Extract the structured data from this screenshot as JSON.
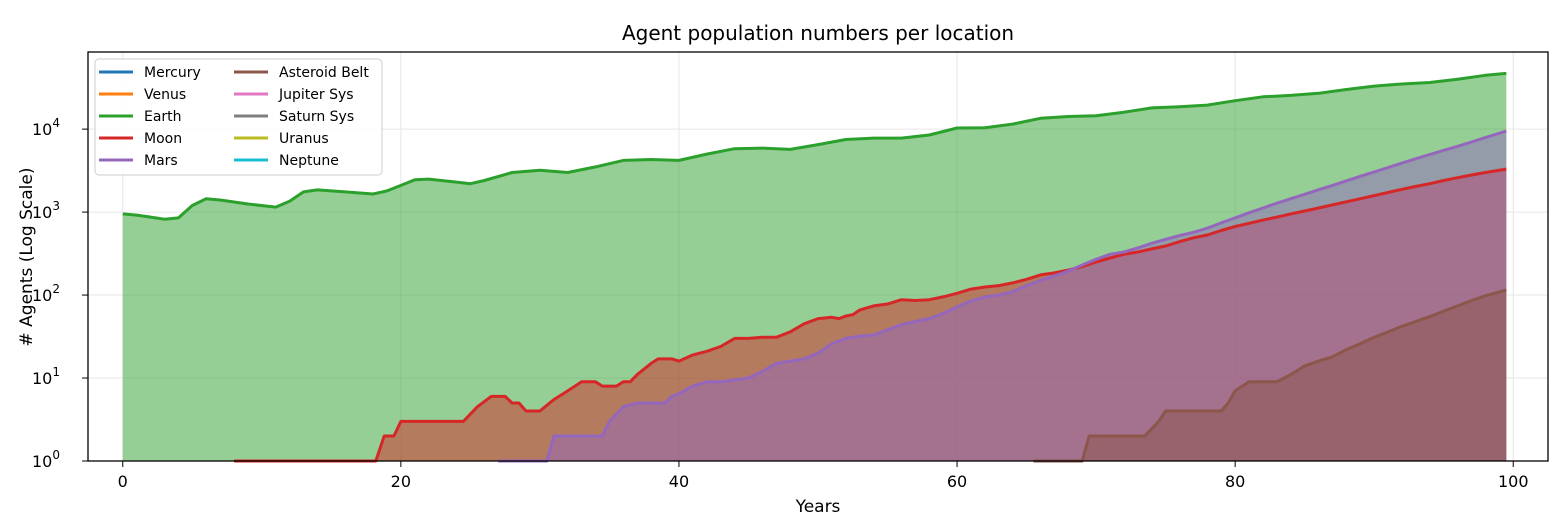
{
  "chart_data": {
    "type": "area",
    "title": "Agent population numbers per location",
    "xlabel": "Years",
    "ylabel": "# Agents (Log Scale)",
    "xlim": [
      -2.5,
      102.5
    ],
    "ylim": [
      1,
      85000
    ],
    "yscale": "log",
    "grid": true,
    "legend_position": "top-left",
    "x_ticks": [
      0,
      20,
      40,
      60,
      80,
      100
    ],
    "y_ticks": [
      {
        "value": 1,
        "base": "10",
        "exp": "0"
      },
      {
        "value": 10,
        "base": "10",
        "exp": "1"
      },
      {
        "value": 100,
        "base": "10",
        "exp": "2"
      },
      {
        "value": 1000,
        "base": "10",
        "exp": "3"
      },
      {
        "value": 10000,
        "base": "10",
        "exp": "4"
      }
    ],
    "series": [
      {
        "name": "Mercury",
        "color": "#1f77b4",
        "points": []
      },
      {
        "name": "Venus",
        "color": "#ff7f0e",
        "points": []
      },
      {
        "name": "Earth",
        "color": "#2ca02c",
        "points": [
          [
            0,
            950
          ],
          [
            1,
            920
          ],
          [
            2,
            870
          ],
          [
            3,
            820
          ],
          [
            4,
            850
          ],
          [
            5,
            1200
          ],
          [
            6,
            1450
          ],
          [
            7,
            1400
          ],
          [
            9,
            1250
          ],
          [
            11,
            1150
          ],
          [
            12,
            1350
          ],
          [
            13,
            1750
          ],
          [
            14,
            1850
          ],
          [
            16,
            1750
          ],
          [
            18,
            1650
          ],
          [
            19,
            1800
          ],
          [
            20,
            2100
          ],
          [
            21,
            2450
          ],
          [
            22,
            2500
          ],
          [
            24,
            2300
          ],
          [
            25,
            2200
          ],
          [
            26,
            2400
          ],
          [
            28,
            3000
          ],
          [
            30,
            3200
          ],
          [
            32,
            3000
          ],
          [
            34,
            3500
          ],
          [
            36,
            4200
          ],
          [
            38,
            4300
          ],
          [
            40,
            4200
          ],
          [
            42,
            5000
          ],
          [
            44,
            5800
          ],
          [
            46,
            5900
          ],
          [
            48,
            5700
          ],
          [
            50,
            6500
          ],
          [
            52,
            7500
          ],
          [
            54,
            7800
          ],
          [
            56,
            7800
          ],
          [
            58,
            8500
          ],
          [
            60,
            10300
          ],
          [
            62,
            10400
          ],
          [
            64,
            11500
          ],
          [
            66,
            13500
          ],
          [
            68,
            14200
          ],
          [
            70,
            14500
          ],
          [
            72,
            16000
          ],
          [
            74,
            18000
          ],
          [
            76,
            18600
          ],
          [
            78,
            19500
          ],
          [
            80,
            22000
          ],
          [
            82,
            24500
          ],
          [
            84,
            25500
          ],
          [
            86,
            27000
          ],
          [
            88,
            30000
          ],
          [
            90,
            33000
          ],
          [
            92,
            35000
          ],
          [
            94,
            36500
          ],
          [
            96,
            40000
          ],
          [
            98,
            44500
          ],
          [
            99.5,
            47000
          ]
        ]
      },
      {
        "name": "Moon",
        "color": "#d62728",
        "points": [
          [
            8,
            1
          ],
          [
            12.5,
            1
          ],
          [
            18.2,
            1
          ],
          [
            18.8,
            2
          ],
          [
            19.5,
            2
          ],
          [
            20,
            3
          ],
          [
            24.5,
            3
          ],
          [
            25.5,
            4.5
          ],
          [
            26.5,
            6
          ],
          [
            27.5,
            6
          ],
          [
            28,
            5
          ],
          [
            28.5,
            5
          ],
          [
            29,
            4
          ],
          [
            30,
            4
          ],
          [
            31,
            5.5
          ],
          [
            32,
            7
          ],
          [
            33,
            9
          ],
          [
            34,
            9
          ],
          [
            34.5,
            8
          ],
          [
            35.5,
            8
          ],
          [
            36,
            9
          ],
          [
            36.5,
            9
          ],
          [
            37,
            11
          ],
          [
            38,
            15
          ],
          [
            38.5,
            17
          ],
          [
            39.5,
            17
          ],
          [
            40,
            16
          ],
          [
            41,
            19
          ],
          [
            42,
            21
          ],
          [
            43,
            24
          ],
          [
            44,
            30
          ],
          [
            45,
            30
          ],
          [
            46,
            31
          ],
          [
            47,
            31
          ],
          [
            48,
            36
          ],
          [
            49,
            45
          ],
          [
            50,
            52
          ],
          [
            51,
            54
          ],
          [
            51.5,
            52
          ],
          [
            52,
            56
          ],
          [
            52.5,
            58
          ],
          [
            53,
            66
          ],
          [
            54,
            74
          ],
          [
            55,
            78
          ],
          [
            56,
            88
          ],
          [
            57,
            86
          ],
          [
            58,
            88
          ],
          [
            59,
            95
          ],
          [
            60,
            105
          ],
          [
            61,
            118
          ],
          [
            62,
            125
          ],
          [
            63,
            130
          ],
          [
            64,
            140
          ],
          [
            65,
            155
          ],
          [
            66,
            175
          ],
          [
            67,
            185
          ],
          [
            68,
            200
          ],
          [
            69,
            220
          ],
          [
            70,
            250
          ],
          [
            71,
            280
          ],
          [
            72,
            310
          ],
          [
            73,
            330
          ],
          [
            74,
            360
          ],
          [
            75,
            390
          ],
          [
            76,
            440
          ],
          [
            77,
            490
          ],
          [
            78,
            530
          ],
          [
            79,
            600
          ],
          [
            80,
            670
          ],
          [
            81,
            730
          ],
          [
            82,
            800
          ],
          [
            83,
            870
          ],
          [
            84,
            950
          ],
          [
            85,
            1030
          ],
          [
            86,
            1120
          ],
          [
            87,
            1220
          ],
          [
            88,
            1330
          ],
          [
            89,
            1450
          ],
          [
            90,
            1580
          ],
          [
            91,
            1720
          ],
          [
            92,
            1880
          ],
          [
            93,
            2040
          ],
          [
            94,
            2200
          ],
          [
            95,
            2400
          ],
          [
            96,
            2600
          ],
          [
            97,
            2800
          ],
          [
            98,
            3000
          ],
          [
            99.5,
            3300
          ]
        ]
      },
      {
        "name": "Mars",
        "color": "#9467bd",
        "points": [
          [
            27,
            1
          ],
          [
            30.5,
            1
          ],
          [
            31,
            2
          ],
          [
            34.5,
            2
          ],
          [
            35,
            3
          ],
          [
            36,
            4.5
          ],
          [
            37,
            5
          ],
          [
            38,
            5
          ],
          [
            39,
            5
          ],
          [
            39.5,
            6
          ],
          [
            40,
            6.5
          ],
          [
            41,
            8
          ],
          [
            42,
            9
          ],
          [
            43,
            9
          ],
          [
            44,
            9.5
          ],
          [
            45,
            10
          ],
          [
            46,
            12
          ],
          [
            47,
            15
          ],
          [
            48,
            16
          ],
          [
            49,
            17
          ],
          [
            50,
            20
          ],
          [
            51,
            26
          ],
          [
            52,
            30
          ],
          [
            53,
            32
          ],
          [
            54,
            33
          ],
          [
            55,
            38
          ],
          [
            56,
            44
          ],
          [
            57,
            48
          ],
          [
            58,
            52
          ],
          [
            59,
            60
          ],
          [
            60,
            72
          ],
          [
            61,
            85
          ],
          [
            62,
            95
          ],
          [
            63,
            100
          ],
          [
            64,
            110
          ],
          [
            65,
            130
          ],
          [
            66,
            150
          ],
          [
            67,
            170
          ],
          [
            68,
            195
          ],
          [
            69,
            230
          ],
          [
            70,
            270
          ],
          [
            71,
            310
          ],
          [
            72,
            330
          ],
          [
            73,
            370
          ],
          [
            74,
            420
          ],
          [
            75,
            470
          ],
          [
            76,
            520
          ],
          [
            77,
            570
          ],
          [
            78,
            640
          ],
          [
            79,
            740
          ],
          [
            80,
            850
          ],
          [
            81,
            980
          ],
          [
            82,
            1120
          ],
          [
            83,
            1280
          ],
          [
            84,
            1450
          ],
          [
            85,
            1640
          ],
          [
            86,
            1860
          ],
          [
            87,
            2100
          ],
          [
            88,
            2380
          ],
          [
            89,
            2700
          ],
          [
            90,
            3050
          ],
          [
            91,
            3450
          ],
          [
            92,
            3900
          ],
          [
            93,
            4400
          ],
          [
            94,
            4950
          ],
          [
            95,
            5550
          ],
          [
            96,
            6200
          ],
          [
            97,
            7000
          ],
          [
            98,
            7900
          ],
          [
            99.5,
            9500
          ]
        ]
      },
      {
        "name": "Asteroid Belt",
        "color": "#8c564b",
        "points": [
          [
            65.5,
            1
          ],
          [
            69,
            1
          ],
          [
            69.5,
            2
          ],
          [
            73.5,
            2
          ],
          [
            74.5,
            3
          ],
          [
            75,
            4
          ],
          [
            78,
            4
          ],
          [
            79,
            4
          ],
          [
            79.5,
            5
          ],
          [
            80,
            7
          ],
          [
            81,
            9
          ],
          [
            83,
            9
          ],
          [
            84,
            11
          ],
          [
            85,
            14
          ],
          [
            86,
            16
          ],
          [
            87,
            18
          ],
          [
            88,
            22
          ],
          [
            89,
            26
          ],
          [
            90,
            31
          ],
          [
            91,
            36
          ],
          [
            92,
            42
          ],
          [
            93,
            48
          ],
          [
            94,
            55
          ],
          [
            95,
            64
          ],
          [
            96,
            74
          ],
          [
            97,
            86
          ],
          [
            98,
            98
          ],
          [
            99.5,
            115
          ]
        ]
      },
      {
        "name": "Jupiter Sys",
        "color": "#e377c2",
        "points": []
      },
      {
        "name": "Saturn Sys",
        "color": "#7f7f7f",
        "points": []
      },
      {
        "name": "Uranus",
        "color": "#bcbd22",
        "points": []
      },
      {
        "name": "Neptune",
        "color": "#17becf",
        "points": []
      }
    ]
  }
}
